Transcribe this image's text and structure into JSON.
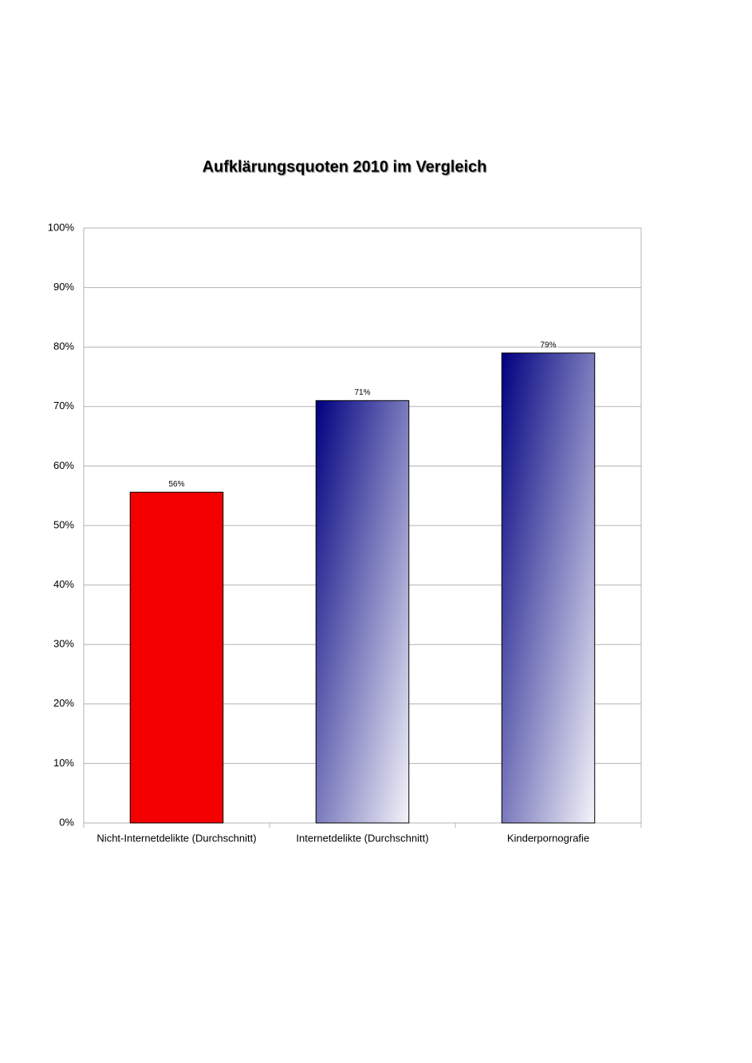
{
  "chart_data": {
    "type": "bar",
    "title": "Aufklärungsquoten 2010 im Vergleich",
    "categories": [
      "Nicht-Internetdelikte (Durchschnitt)",
      "Internetdelikte (Durchschnitt)",
      "Kinderpornografie"
    ],
    "values": [
      55.6,
      71,
      79
    ],
    "value_labels": [
      "56%",
      "71%",
      "79%"
    ],
    "colors": [
      "#f50000",
      [
        "#000080",
        "#f4f4fa"
      ],
      [
        "#000080",
        "#f4f4fa"
      ]
    ],
    "ylim": [
      0,
      100
    ],
    "yticks": [
      {
        "value": 0,
        "label": "0%"
      },
      {
        "value": 10,
        "label": "10%"
      },
      {
        "value": 20,
        "label": "20%"
      },
      {
        "value": 30,
        "label": "30%"
      },
      {
        "value": 40,
        "label": "40%"
      },
      {
        "value": 50,
        "label": "50%"
      },
      {
        "value": 60,
        "label": "60%"
      },
      {
        "value": 70,
        "label": "70%"
      },
      {
        "value": 80,
        "label": "80%"
      },
      {
        "value": 90,
        "label": "90%"
      },
      {
        "value": 100,
        "label": "100%"
      }
    ],
    "grid": true
  }
}
